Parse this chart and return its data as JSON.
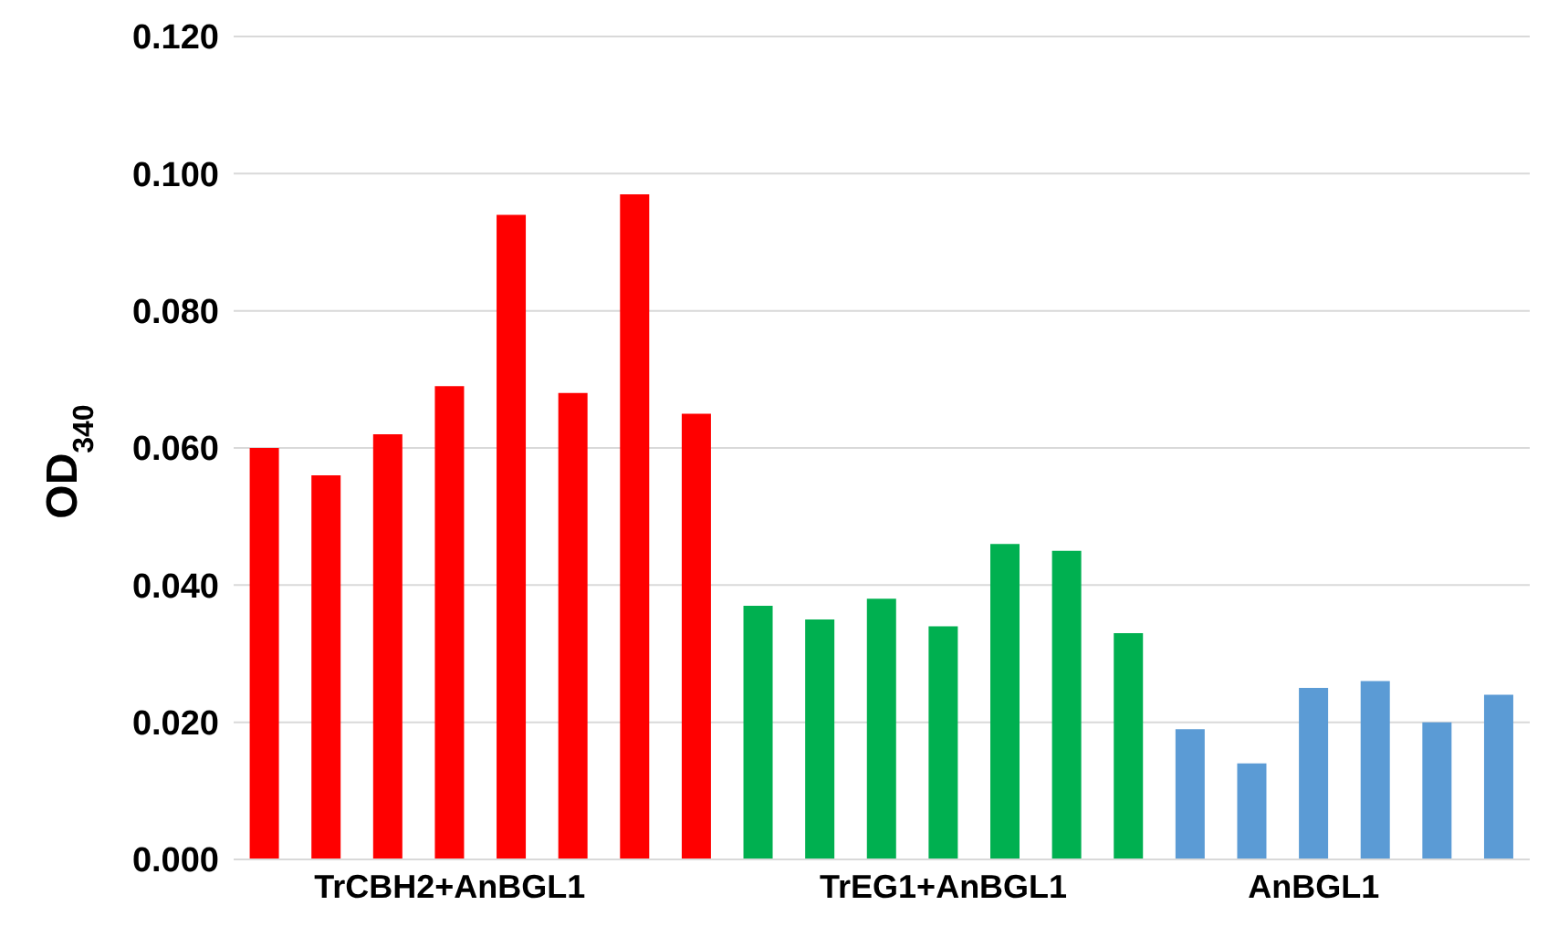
{
  "chart_data": {
    "type": "bar",
    "ylabel": "OD$_{340}$",
    "categories": [
      null,
      null,
      null,
      "TrCBH2+AnBGL1",
      null,
      null,
      null,
      null,
      null,
      null,
      null,
      "TrEG1+AnBGL1",
      null,
      null,
      null,
      null,
      null,
      "AnBGL1",
      null,
      null,
      null
    ],
    "values": [
      0.06,
      0.056,
      0.062,
      0.069,
      0.094,
      0.068,
      0.097,
      0.065,
      0.037,
      0.035,
      0.038,
      0.034,
      0.046,
      0.045,
      0.033,
      0.019,
      0.014,
      0.025,
      0.026,
      0.02,
      0.024
    ],
    "colors": [
      "#ff0000",
      "#ff0000",
      "#ff0000",
      "#ff0000",
      "#ff0000",
      "#ff0000",
      "#ff0000",
      "#ff0000",
      "#00b050",
      "#00b050",
      "#00b050",
      "#00b050",
      "#00b050",
      "#00b050",
      "#00b050",
      "#5b9bd5",
      "#5b9bd5",
      "#5b9bd5",
      "#5b9bd5",
      "#5b9bd5",
      "#5b9bd5"
    ],
    "ylim": [
      0,
      0.12
    ],
    "yticks": [
      {
        "value": 0,
        "label": "0.000"
      },
      {
        "value": 0.02,
        "label": "0.020"
      },
      {
        "value": 0.04,
        "label": "0.040"
      },
      {
        "value": 0.06,
        "label": "0.060"
      },
      {
        "value": 0.08,
        "label": "0.080"
      },
      {
        "value": 0.1,
        "label": "0.100"
      },
      {
        "value": 0.12,
        "label": "0.120"
      }
    ],
    "grid": "y"
  }
}
